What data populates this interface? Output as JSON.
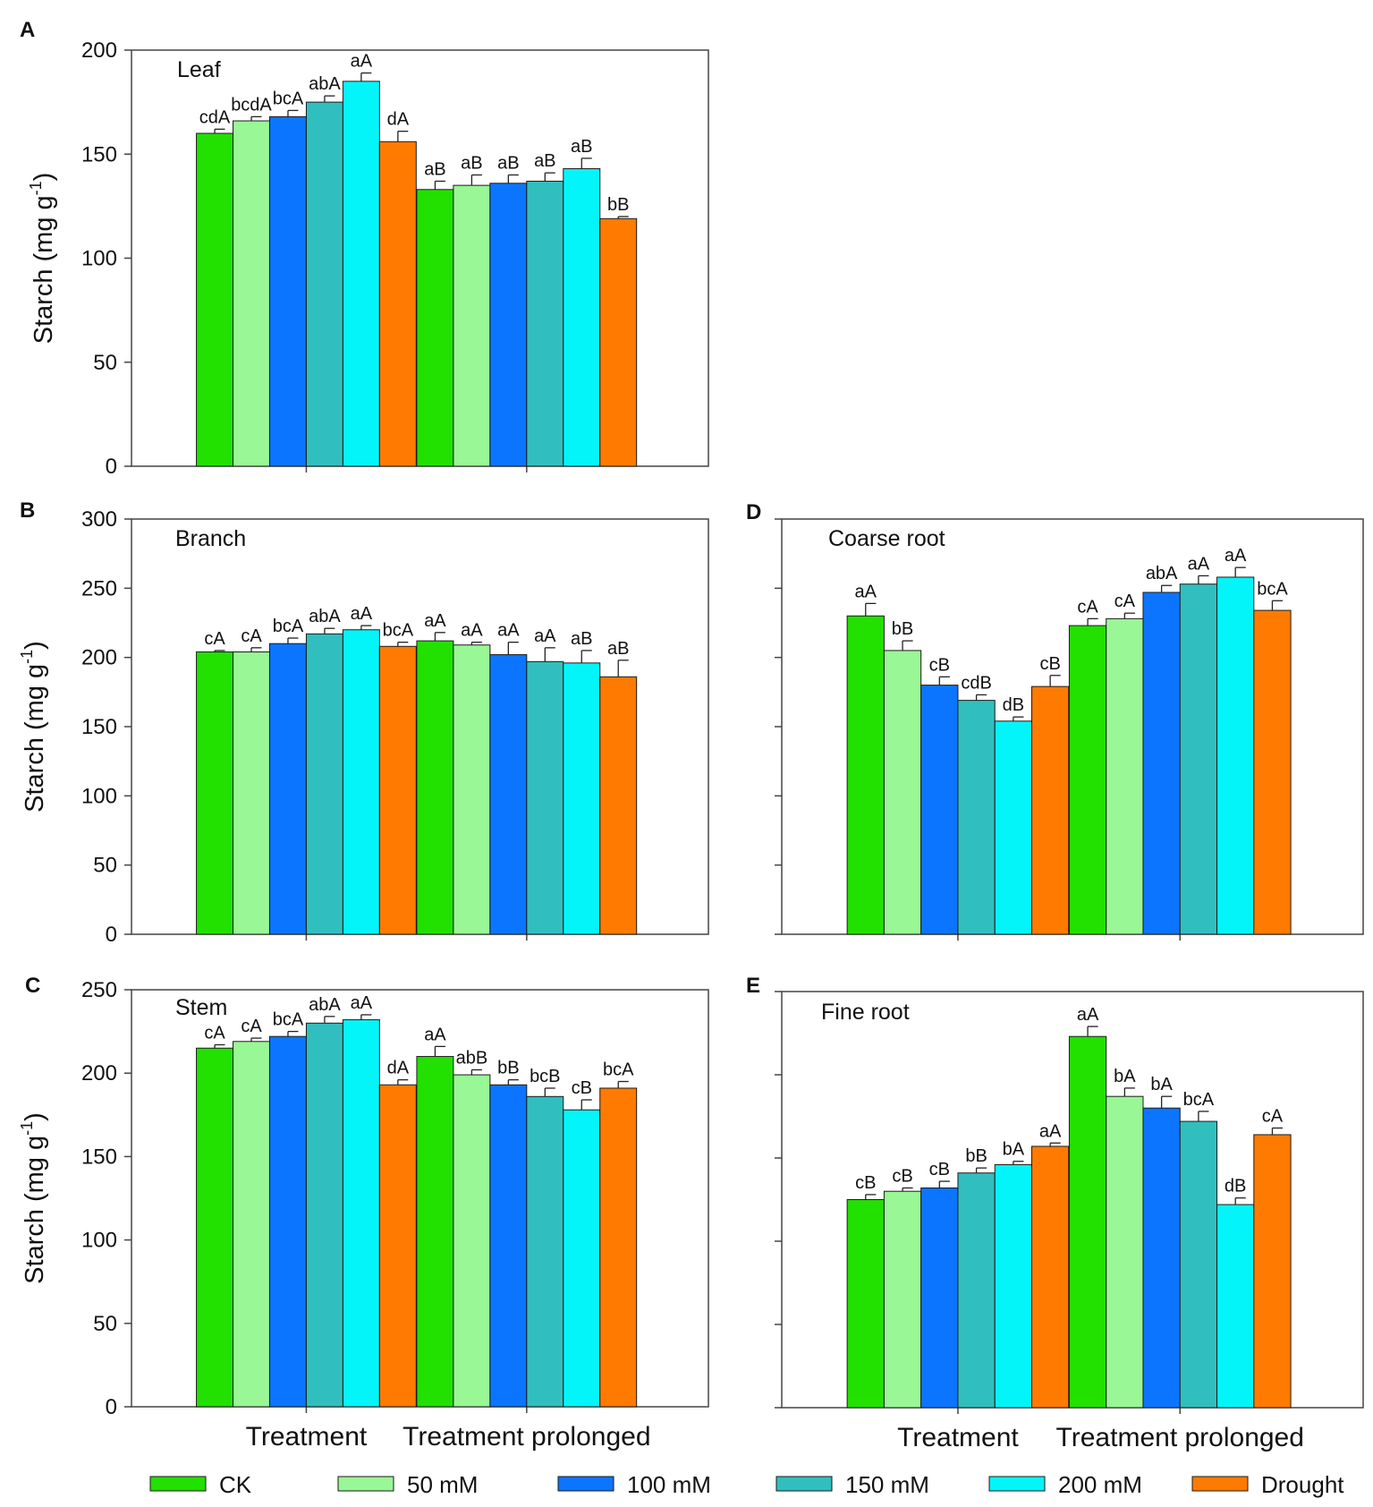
{
  "figure": {
    "series": [
      {
        "name": "CK",
        "color": "#22e000"
      },
      {
        "name": "50 mM",
        "color": "#99f795"
      },
      {
        "name": "100 mM",
        "color": "#0c75ff"
      },
      {
        "name": "150 mM",
        "color": "#30bfbe"
      },
      {
        "name": "200 mM",
        "color": "#04f5f9"
      },
      {
        "name": "Drought",
        "color": "#ff7a00"
      }
    ],
    "groups": [
      "Treatment",
      "Treatment prolonged"
    ],
    "ylabel_main": "Starch (mg g",
    "ylabel_sup": "-1",
    "ylabel_close": ")"
  },
  "chart_data": [
    {
      "panel": "A",
      "type": "bar",
      "title": "Leaf",
      "ylim": [
        0,
        200
      ],
      "yticks": [
        0,
        50,
        100,
        150,
        200
      ],
      "show_tick_labels": true,
      "categories": [
        "Treatment",
        "Treatment prolonged"
      ],
      "series": [
        {
          "name": "CK",
          "values": [
            160,
            133
          ],
          "errors": [
            2,
            4
          ],
          "labels": [
            "cdA",
            "aB"
          ]
        },
        {
          "name": "50 mM",
          "values": [
            166,
            135
          ],
          "errors": [
            2,
            5
          ],
          "labels": [
            "bcdA",
            "aB"
          ]
        },
        {
          "name": "100 mM",
          "values": [
            168,
            136
          ],
          "errors": [
            3,
            4
          ],
          "labels": [
            "bcA",
            "aB"
          ]
        },
        {
          "name": "150 mM",
          "values": [
            175,
            137
          ],
          "errors": [
            3,
            4
          ],
          "labels": [
            "abA",
            "aB"
          ]
        },
        {
          "name": "200 mM",
          "values": [
            185,
            143
          ],
          "errors": [
            4,
            5
          ],
          "labels": [
            "aA",
            "aB"
          ]
        },
        {
          "name": "Drought",
          "values": [
            156,
            119
          ],
          "errors": [
            5,
            1
          ],
          "labels": [
            "dA",
            "bB"
          ]
        }
      ]
    },
    {
      "panel": "B",
      "type": "bar",
      "title": "Branch",
      "ylim": [
        0,
        300
      ],
      "yticks": [
        0,
        50,
        100,
        150,
        200,
        250,
        300
      ],
      "show_tick_labels": true,
      "categories": [
        "Treatment",
        "Treatment prolonged"
      ],
      "series": [
        {
          "name": "CK",
          "values": [
            204,
            212
          ],
          "errors": [
            1,
            6
          ],
          "labels": [
            "cA",
            "aA"
          ]
        },
        {
          "name": "50 mM",
          "values": [
            204,
            209
          ],
          "errors": [
            3,
            2
          ],
          "labels": [
            "cA",
            "aA"
          ]
        },
        {
          "name": "100 mM",
          "values": [
            210,
            202
          ],
          "errors": [
            4,
            9
          ],
          "labels": [
            "bcA",
            "aA"
          ]
        },
        {
          "name": "150 mM",
          "values": [
            217,
            197
          ],
          "errors": [
            4,
            10
          ],
          "labels": [
            "abA",
            "aA"
          ]
        },
        {
          "name": "200 mM",
          "values": [
            220,
            196
          ],
          "errors": [
            3,
            9
          ],
          "labels": [
            "aA",
            "aB"
          ]
        },
        {
          "name": "Drought",
          "values": [
            208,
            186
          ],
          "errors": [
            3,
            12
          ],
          "labels": [
            "bcA",
            "aB"
          ]
        }
      ]
    },
    {
      "panel": "C",
      "type": "bar",
      "title": "Stem",
      "ylim": [
        0,
        250
      ],
      "yticks": [
        0,
        50,
        100,
        150,
        200,
        250
      ],
      "show_tick_labels": true,
      "categories": [
        "Treatment",
        "Treatment prolonged"
      ],
      "series": [
        {
          "name": "CK",
          "values": [
            215,
            210
          ],
          "errors": [
            2,
            6
          ],
          "labels": [
            "cA",
            "aA"
          ]
        },
        {
          "name": "50 mM",
          "values": [
            219,
            199
          ],
          "errors": [
            2,
            3
          ],
          "labels": [
            "cA",
            "abB"
          ]
        },
        {
          "name": "100 mM",
          "values": [
            222,
            193
          ],
          "errors": [
            3,
            3
          ],
          "labels": [
            "bcA",
            "bB"
          ]
        },
        {
          "name": "150 mM",
          "values": [
            230,
            186
          ],
          "errors": [
            4,
            5
          ],
          "labels": [
            "abA",
            "bcB"
          ]
        },
        {
          "name": "200 mM",
          "values": [
            232,
            178
          ],
          "errors": [
            3,
            6
          ],
          "labels": [
            "aA",
            "cB"
          ]
        },
        {
          "name": "Drought",
          "values": [
            193,
            191
          ],
          "errors": [
            3,
            4
          ],
          "labels": [
            "dA",
            "bcA"
          ]
        }
      ]
    },
    {
      "panel": "D",
      "type": "bar",
      "title": "Coarse root",
      "ylim": [
        0,
        300
      ],
      "yticks": [
        0,
        50,
        100,
        150,
        200,
        250,
        300
      ],
      "show_tick_labels": false,
      "categories": [
        "Treatment",
        "Treatment prolonged"
      ],
      "series": [
        {
          "name": "CK",
          "values": [
            230,
            223
          ],
          "errors": [
            9,
            5
          ],
          "labels": [
            "aA",
            "cA"
          ]
        },
        {
          "name": "50 mM",
          "values": [
            205,
            228
          ],
          "errors": [
            7,
            4
          ],
          "labels": [
            "bB",
            "cA"
          ]
        },
        {
          "name": "100 mM",
          "values": [
            180,
            247
          ],
          "errors": [
            6,
            5
          ],
          "labels": [
            "cB",
            "abA"
          ]
        },
        {
          "name": "150 mM",
          "values": [
            169,
            253
          ],
          "errors": [
            4,
            6
          ],
          "labels": [
            "cdB",
            "aA"
          ]
        },
        {
          "name": "200 mM",
          "values": [
            154,
            258
          ],
          "errors": [
            3,
            7
          ],
          "labels": [
            "dB",
            "aA"
          ]
        },
        {
          "name": "Drought",
          "values": [
            179,
            234
          ],
          "errors": [
            8,
            7
          ],
          "labels": [
            "cB",
            "bcA"
          ]
        }
      ]
    },
    {
      "panel": "E",
      "type": "bar",
      "title": "Fine root",
      "ylim": [
        0,
        250
      ],
      "yticks": [
        0,
        50,
        100,
        150,
        200,
        250
      ],
      "show_tick_labels": false,
      "categories": [
        "Treatment",
        "Treatment prolonged"
      ],
      "series": [
        {
          "name": "CK",
          "values": [
            125,
            223
          ],
          "errors": [
            3,
            6
          ],
          "labels": [
            "cB",
            "aA"
          ]
        },
        {
          "name": "50 mM",
          "values": [
            130,
            187
          ],
          "errors": [
            2,
            5
          ],
          "labels": [
            "cB",
            "bA"
          ]
        },
        {
          "name": "100 mM",
          "values": [
            132,
            180
          ],
          "errors": [
            4,
            7
          ],
          "labels": [
            "cB",
            "bA"
          ]
        },
        {
          "name": "150 mM",
          "values": [
            141,
            172
          ],
          "errors": [
            3,
            6
          ],
          "labels": [
            "bB",
            "bcA"
          ]
        },
        {
          "name": "200 mM",
          "values": [
            146,
            122
          ],
          "errors": [
            2,
            4
          ],
          "labels": [
            "bA",
            "dB"
          ]
        },
        {
          "name": "Drought",
          "values": [
            157,
            164
          ],
          "errors": [
            2,
            4
          ],
          "labels": [
            "aA",
            "cA"
          ]
        }
      ]
    }
  ]
}
